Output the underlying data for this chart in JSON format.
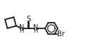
{
  "bg_color": "#ffffff",
  "line_color": "#1a1a1a",
  "line_width": 1.3,
  "font_size": 7.0,
  "font_color": "#1a1a1a",
  "figsize": [
    1.56,
    0.62
  ],
  "dpi": 100,
  "xlim": [
    0.0,
    7.8
  ],
  "ylim": [
    -0.6,
    1.8
  ]
}
